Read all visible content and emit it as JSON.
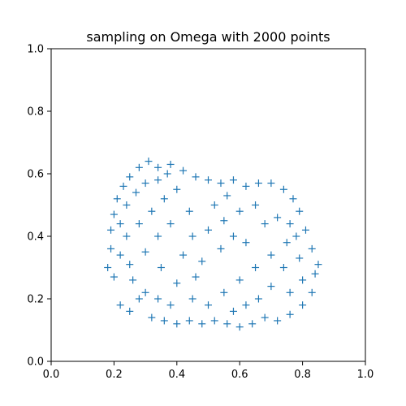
{
  "chart_data": {
    "type": "scatter",
    "title": "sampling on Omega with 2000 points",
    "xlabel": "",
    "ylabel": "",
    "xlim": [
      0.0,
      1.0
    ],
    "ylim": [
      0.0,
      1.0
    ],
    "xticks": [
      "0.0",
      "0.2",
      "0.4",
      "0.6",
      "0.8",
      "1.0"
    ],
    "yticks": [
      "0.0",
      "0.2",
      "0.4",
      "0.6",
      "0.8",
      "1.0"
    ],
    "grid": false,
    "legend": "none",
    "marker": "+",
    "color": "#1f77b4",
    "series": [
      {
        "points": [
          [
            0.18,
            0.3
          ],
          [
            0.2,
            0.27
          ],
          [
            0.22,
            0.18
          ],
          [
            0.25,
            0.16
          ],
          [
            0.28,
            0.2
          ],
          [
            0.32,
            0.14
          ],
          [
            0.36,
            0.13
          ],
          [
            0.4,
            0.12
          ],
          [
            0.44,
            0.13
          ],
          [
            0.48,
            0.12
          ],
          [
            0.52,
            0.13
          ],
          [
            0.56,
            0.12
          ],
          [
            0.6,
            0.11
          ],
          [
            0.64,
            0.12
          ],
          [
            0.68,
            0.14
          ],
          [
            0.72,
            0.13
          ],
          [
            0.76,
            0.15
          ],
          [
            0.8,
            0.18
          ],
          [
            0.83,
            0.22
          ],
          [
            0.84,
            0.28
          ],
          [
            0.85,
            0.31
          ],
          [
            0.83,
            0.36
          ],
          [
            0.81,
            0.42
          ],
          [
            0.79,
            0.48
          ],
          [
            0.77,
            0.52
          ],
          [
            0.74,
            0.55
          ],
          [
            0.7,
            0.57
          ],
          [
            0.66,
            0.57
          ],
          [
            0.62,
            0.56
          ],
          [
            0.58,
            0.58
          ],
          [
            0.54,
            0.57
          ],
          [
            0.5,
            0.58
          ],
          [
            0.46,
            0.59
          ],
          [
            0.42,
            0.61
          ],
          [
            0.38,
            0.63
          ],
          [
            0.34,
            0.62
          ],
          [
            0.31,
            0.64
          ],
          [
            0.28,
            0.62
          ],
          [
            0.25,
            0.59
          ],
          [
            0.23,
            0.56
          ],
          [
            0.21,
            0.52
          ],
          [
            0.2,
            0.47
          ],
          [
            0.19,
            0.42
          ],
          [
            0.19,
            0.36
          ],
          [
            0.24,
            0.4
          ],
          [
            0.28,
            0.44
          ],
          [
            0.32,
            0.48
          ],
          [
            0.36,
            0.52
          ],
          [
            0.4,
            0.55
          ],
          [
            0.3,
            0.35
          ],
          [
            0.35,
            0.3
          ],
          [
            0.4,
            0.25
          ],
          [
            0.45,
            0.2
          ],
          [
            0.5,
            0.18
          ],
          [
            0.55,
            0.22
          ],
          [
            0.6,
            0.26
          ],
          [
            0.65,
            0.3
          ],
          [
            0.7,
            0.34
          ],
          [
            0.75,
            0.38
          ],
          [
            0.45,
            0.4
          ],
          [
            0.5,
            0.42
          ],
          [
            0.55,
            0.45
          ],
          [
            0.6,
            0.48
          ],
          [
            0.65,
            0.5
          ],
          [
            0.42,
            0.34
          ],
          [
            0.48,
            0.32
          ],
          [
            0.54,
            0.36
          ],
          [
            0.58,
            0.4
          ],
          [
            0.62,
            0.38
          ],
          [
            0.26,
            0.26
          ],
          [
            0.3,
            0.22
          ],
          [
            0.34,
            0.2
          ],
          [
            0.38,
            0.18
          ],
          [
            0.46,
            0.27
          ],
          [
            0.52,
            0.5
          ],
          [
            0.56,
            0.53
          ],
          [
            0.44,
            0.48
          ],
          [
            0.38,
            0.44
          ],
          [
            0.34,
            0.4
          ],
          [
            0.68,
            0.44
          ],
          [
            0.72,
            0.46
          ],
          [
            0.76,
            0.44
          ],
          [
            0.78,
            0.4
          ],
          [
            0.74,
            0.3
          ],
          [
            0.7,
            0.24
          ],
          [
            0.66,
            0.2
          ],
          [
            0.62,
            0.18
          ],
          [
            0.58,
            0.16
          ],
          [
            0.76,
            0.22
          ],
          [
            0.8,
            0.26
          ],
          [
            0.79,
            0.33
          ],
          [
            0.22,
            0.44
          ],
          [
            0.24,
            0.5
          ],
          [
            0.27,
            0.54
          ],
          [
            0.3,
            0.57
          ],
          [
            0.34,
            0.58
          ],
          [
            0.37,
            0.6
          ],
          [
            0.22,
            0.34
          ],
          [
            0.25,
            0.31
          ]
        ]
      }
    ]
  }
}
